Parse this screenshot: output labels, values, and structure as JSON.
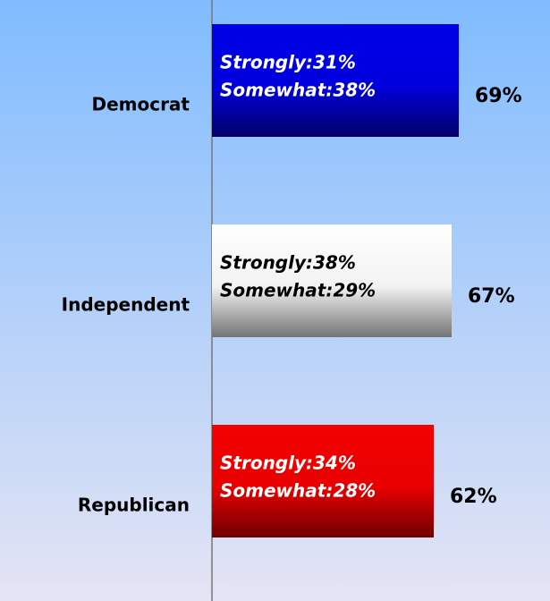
{
  "chart_data": {
    "type": "hbar",
    "categories": [
      "Democrat",
      "Independent",
      "Republican"
    ],
    "values": [
      69,
      67,
      62
    ],
    "value_labels": [
      "69%",
      "67%",
      "62%"
    ],
    "inner_labels": [
      [
        "Strongly:31%",
        "Somewhat:38%"
      ],
      [
        "Strongly:38%",
        "Somewhat:29%"
      ],
      [
        "Strongly:34%",
        "Somewhat:28%"
      ]
    ],
    "colors": [
      "#0000e8",
      "#ffffff",
      "#f40000"
    ],
    "label_colors": [
      "#ffffff",
      "#000000",
      "#ffffff"
    ],
    "xlim": [
      0,
      94
    ]
  }
}
